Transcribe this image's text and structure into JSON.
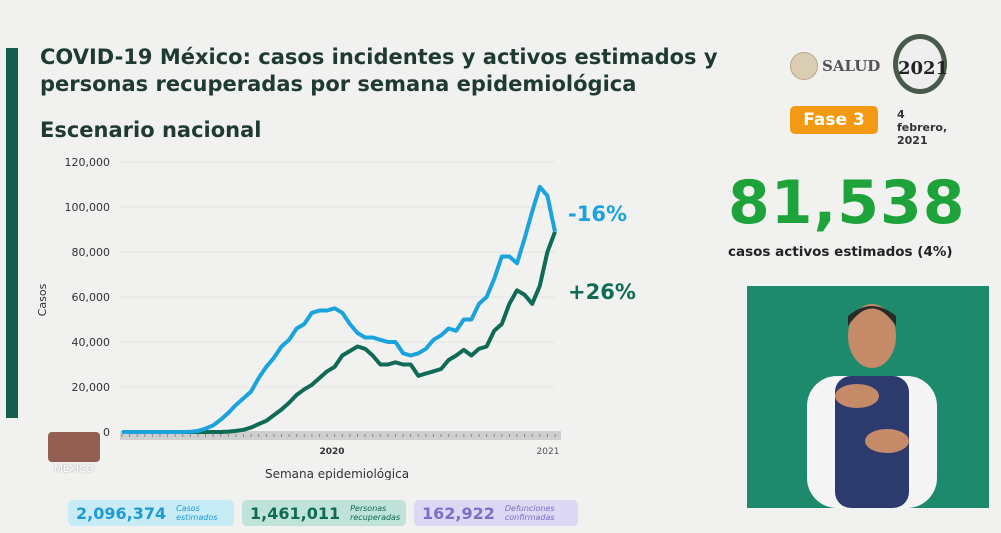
{
  "header": {
    "title": "COVID-19 México: casos incidentes y activos estimados y personas recuperadas por semana epidemiológica",
    "subtitle": "Escenario nacional",
    "phase": "Fase 3",
    "date": "4 febrero, 2021",
    "logo_text": "SALUD",
    "logo_2021": "2021",
    "logo_mexico": "MÉXICO"
  },
  "summary": {
    "active_value": "81,538",
    "active_label": "casos activos estimados (4%)"
  },
  "cards": [
    {
      "value": "2,096,374",
      "label": "Casos estimados",
      "bg": "#c7ecf6",
      "color": "#1e9ad6"
    },
    {
      "value": "1,461,011",
      "label": "Personas recuperadas",
      "bg": "#bfe3d8",
      "color": "#0f6b55"
    },
    {
      "value": "162,922",
      "label": "Defunciones confirmadas",
      "bg": "#dcd8f3",
      "color": "#7b6fc6"
    }
  ],
  "chart_data": {
    "type": "line",
    "xlabel": "Semana epidemiológica",
    "ylabel": "Casos",
    "ylim": [
      0,
      120000
    ],
    "yticks": [
      0,
      20000,
      40000,
      60000,
      80000,
      100000,
      120000
    ],
    "ytick_labels": [
      "0",
      "20,000",
      "40,000",
      "60,000",
      "80,000",
      "100,000",
      "120,000"
    ],
    "year_labels": [
      "2020",
      "2021"
    ],
    "grid": true,
    "series": [
      {
        "color": "#1aa3dc",
        "change_label": "-16%",
        "values": [
          0,
          0,
          0,
          0,
          0,
          0,
          0,
          0,
          0,
          100,
          500,
          1500,
          3000,
          5500,
          8500,
          12000,
          15000,
          18000,
          24000,
          29000,
          33000,
          38000,
          41000,
          46000,
          48000,
          53000,
          54000,
          54000,
          55000,
          53000,
          48000,
          44000,
          42000,
          42000,
          41000,
          40000,
          40000,
          35000,
          34000,
          35000,
          37000,
          41000,
          43000,
          46000,
          45000,
          50000,
          50000,
          57000,
          60000,
          68000,
          78000,
          78000,
          75000,
          86000,
          98000,
          109000,
          105000,
          89000
        ]
      },
      {
        "color": "#0f6b55",
        "change_label": "+26%",
        "values": [
          0,
          0,
          0,
          0,
          0,
          0,
          0,
          0,
          0,
          0,
          0,
          0,
          0,
          0,
          200,
          500,
          1000,
          2000,
          3500,
          5000,
          7500,
          10000,
          13000,
          16500,
          19000,
          21000,
          24000,
          27000,
          29000,
          34000,
          36000,
          38000,
          37000,
          34000,
          30000,
          30000,
          31000,
          30000,
          30000,
          25000,
          26000,
          27000,
          28000,
          32000,
          34000,
          36500,
          34000,
          37000,
          38000,
          45000,
          48000,
          57000,
          63000,
          61000,
          57000,
          65000,
          80000,
          89000
        ]
      }
    ]
  }
}
